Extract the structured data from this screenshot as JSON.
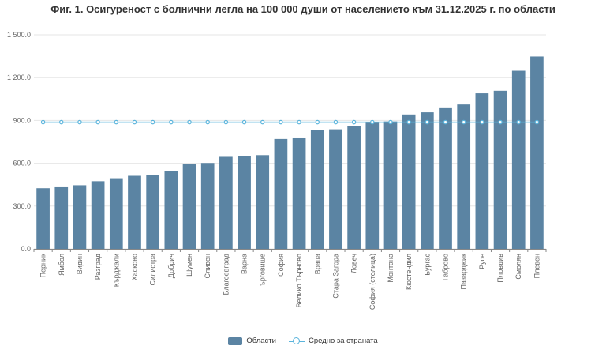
{
  "chart_data": {
    "type": "bar",
    "title": "Фиг. 1. Осигуреност с болнични легла на 100 000 души от населението към 31.12.2025 г. по области",
    "categories": [
      "Перник",
      "Ямбол",
      "Видин",
      "Разград",
      "Кърджали",
      "Хасково",
      "Силистра",
      "Добрич",
      "Шумен",
      "Сливен",
      "Благоевград",
      "Варна",
      "Търговище",
      "София",
      "Велико Търново",
      "Враца",
      "Стара Загора",
      "Ловеч",
      "София (столица)",
      "Монтана",
      "Кюстендил",
      "Бургас",
      "Габрово",
      "Пазарджик",
      "Русе",
      "Пловдив",
      "Смолян",
      "Плевен"
    ],
    "series": [
      {
        "name": "Области",
        "type": "bar",
        "color": "#5b84a3",
        "values": [
          425,
          432,
          446,
          474,
          495,
          512,
          518,
          546,
          594,
          602,
          645,
          652,
          657,
          770,
          775,
          832,
          838,
          862,
          884,
          893,
          942,
          957,
          986,
          1012,
          1090,
          1108,
          1248,
          1348
        ]
      },
      {
        "name": "Средно за страната",
        "type": "line",
        "color": "#5ab4dc",
        "values": [
          888,
          888,
          888,
          888,
          888,
          888,
          888,
          888,
          888,
          888,
          888,
          888,
          888,
          888,
          888,
          888,
          888,
          888,
          888,
          888,
          888,
          888,
          888,
          888,
          888,
          888,
          888,
          888
        ]
      }
    ],
    "ylim": [
      0,
      1500
    ],
    "yticks": [
      0,
      300,
      600,
      900,
      1200,
      1500
    ],
    "ytick_labels": [
      "0.0",
      "300.0",
      "600.0",
      "900.0",
      "1 200.0",
      "1 500.0"
    ],
    "grid": true,
    "legend_position": "bottom-center"
  }
}
